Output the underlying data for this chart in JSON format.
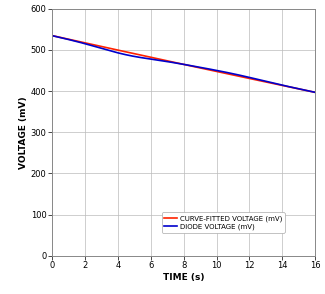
{
  "title": "",
  "xlabel": "TIME (s)",
  "ylabel": "VOLTAGE (mV)",
  "xlim": [
    0,
    16
  ],
  "ylim": [
    0,
    600
  ],
  "xticks": [
    0,
    2,
    4,
    6,
    8,
    10,
    12,
    14,
    16
  ],
  "yticks": [
    0,
    100,
    200,
    300,
    400,
    500,
    600
  ],
  "diode_color": "#0000cc",
  "fitted_color": "#ff2200",
  "diode_label": "DIODE VOLTAGE (mV)",
  "fitted_label": "CURVE-FITTED VOLTAGE (mV)",
  "background_color": "#ffffff",
  "grid_color": "#bbbbbb",
  "line_width": 1.2,
  "legend_fontsize": 5.0,
  "axis_label_fontsize": 6.5,
  "tick_fontsize": 6.0,
  "V0": 535,
  "V16": 397,
  "Vmid": 465
}
